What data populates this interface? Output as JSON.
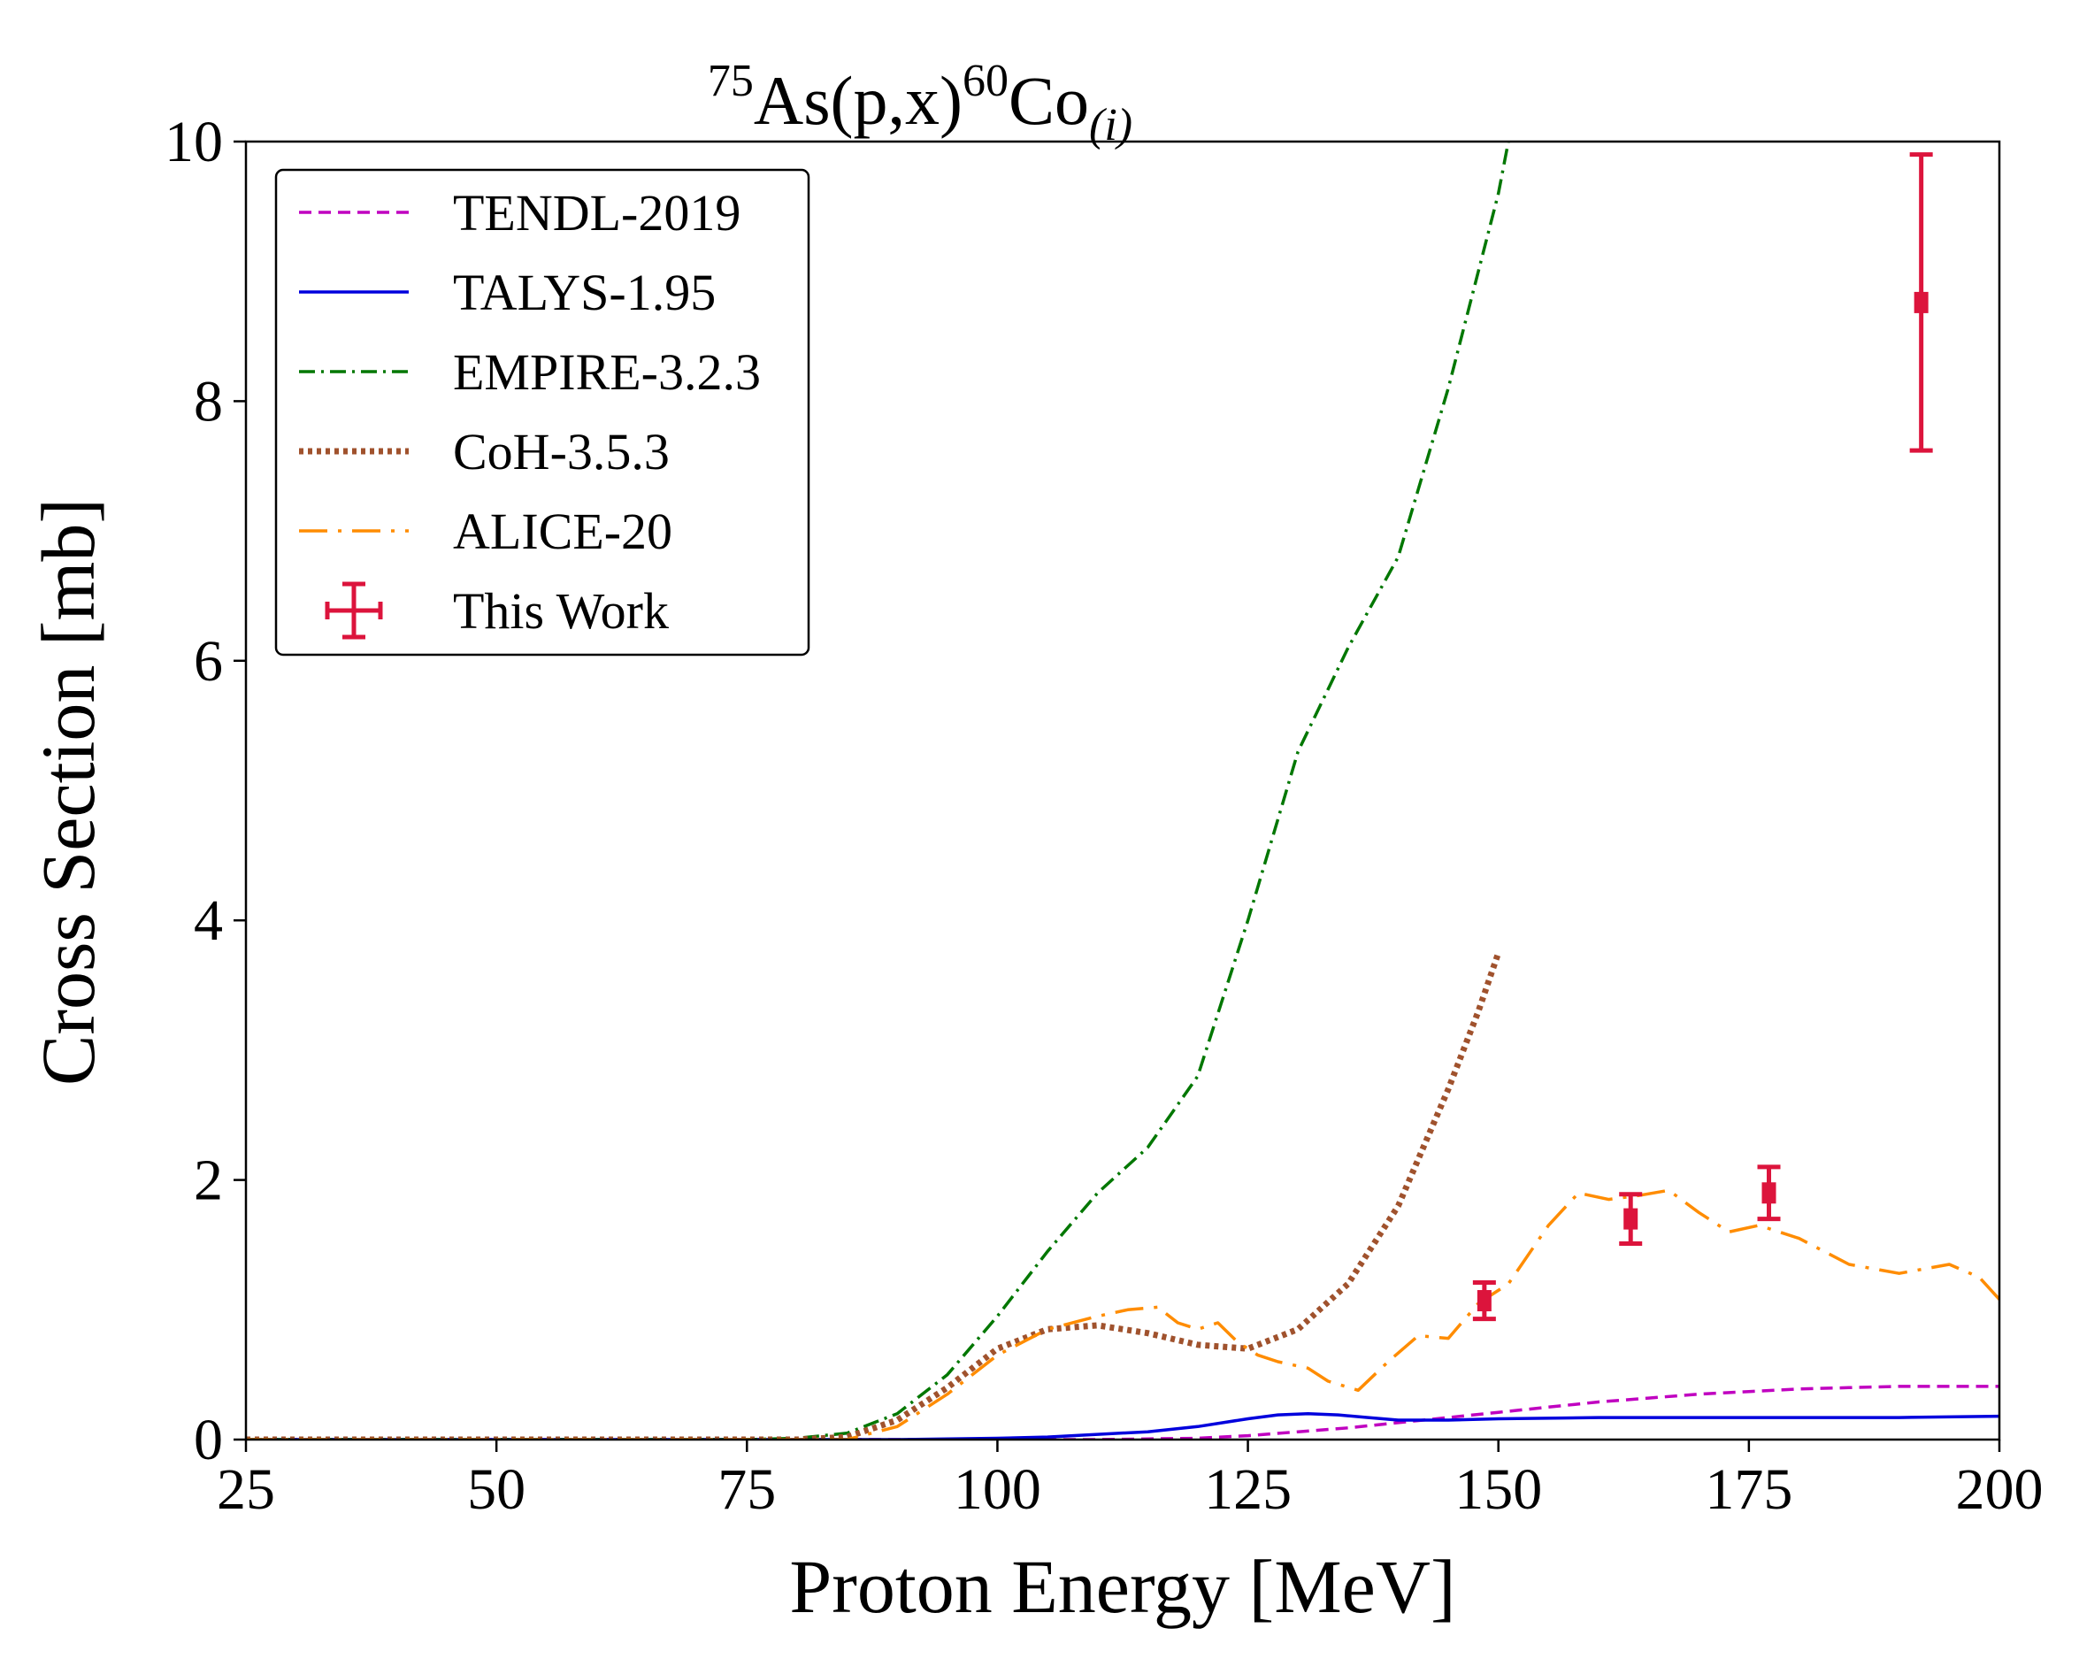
{
  "chart_data": {
    "type": "line",
    "title": {
      "pre_sup": "75",
      "main": "As(p,x)",
      "mid_sup": "60",
      "tail": "Co",
      "sub": "(i)"
    },
    "xlabel": "Proton Energy [MeV]",
    "ylabel": "Cross Section [mb]",
    "xlim": [
      25,
      200
    ],
    "ylim": [
      0,
      10
    ],
    "xticks": [
      25,
      50,
      75,
      100,
      125,
      150,
      175,
      200
    ],
    "yticks": [
      0,
      2,
      4,
      6,
      8,
      10
    ],
    "grid": false,
    "legend_position": "top-left",
    "series": [
      {
        "name": "TENDL-2019",
        "color": "#c000c0",
        "style": "dashed",
        "x": [
          25,
          110,
          120,
          125,
          130,
          135,
          140,
          145,
          150,
          155,
          160,
          165,
          170,
          175,
          180,
          185,
          190,
          195,
          200
        ],
        "y": [
          0,
          0,
          0.01,
          0.03,
          0.06,
          0.09,
          0.13,
          0.17,
          0.21,
          0.25,
          0.29,
          0.32,
          0.35,
          0.37,
          0.39,
          0.4,
          0.41,
          0.41,
          0.41
        ]
      },
      {
        "name": "TALYS-1.95",
        "color": "#0000dd",
        "style": "solid",
        "x": [
          25,
          90,
          100,
          105,
          110,
          115,
          120,
          125,
          128,
          131,
          134,
          137,
          140,
          145,
          150,
          160,
          170,
          180,
          190,
          200
        ],
        "y": [
          0,
          0,
          0.01,
          0.02,
          0.04,
          0.06,
          0.1,
          0.16,
          0.19,
          0.2,
          0.19,
          0.17,
          0.15,
          0.15,
          0.16,
          0.17,
          0.17,
          0.17,
          0.17,
          0.18
        ]
      },
      {
        "name": "EMPIRE-3.2.3",
        "color": "#007700",
        "style": "dashdot",
        "x": [
          25,
          75,
          80,
          85,
          90,
          95,
          100,
          105,
          110,
          115,
          120,
          125,
          130,
          135,
          140,
          145,
          150,
          151
        ],
        "y": [
          0,
          0,
          0.01,
          0.05,
          0.2,
          0.5,
          0.95,
          1.45,
          1.9,
          2.25,
          2.8,
          4.0,
          5.3,
          6.1,
          6.8,
          8.1,
          9.6,
          10.0
        ]
      },
      {
        "name": "CoH-3.5.3",
        "color": "#a0522d",
        "style": "dotted",
        "x": [
          25,
          80,
          85,
          90,
          95,
          100,
          105,
          110,
          115,
          120,
          125,
          130,
          135,
          140,
          145,
          148,
          150
        ],
        "y": [
          0,
          0,
          0.02,
          0.15,
          0.4,
          0.7,
          0.85,
          0.88,
          0.82,
          0.73,
          0.7,
          0.85,
          1.2,
          1.8,
          2.7,
          3.3,
          3.75
        ]
      },
      {
        "name": "ALICE-20",
        "color": "#ff8c00",
        "style": "longdashdot",
        "x": [
          25,
          85,
          90,
          95,
          100,
          105,
          110,
          113,
          116,
          118,
          120,
          122,
          124,
          126,
          128,
          131,
          133,
          136,
          139,
          142,
          145,
          148,
          151,
          155,
          158,
          161,
          164,
          167,
          170,
          173,
          176,
          180,
          185,
          190,
          195,
          198,
          200
        ],
        "y": [
          0,
          0,
          0.1,
          0.35,
          0.65,
          0.85,
          0.95,
          1.0,
          1.02,
          0.9,
          0.85,
          0.9,
          0.75,
          0.65,
          0.6,
          0.55,
          0.45,
          0.38,
          0.6,
          0.8,
          0.78,
          1.05,
          1.2,
          1.65,
          1.9,
          1.85,
          1.88,
          1.92,
          1.75,
          1.6,
          1.65,
          1.55,
          1.35,
          1.28,
          1.35,
          1.25,
          1.08
        ]
      }
    ],
    "errorbar_series": {
      "name": "This Work",
      "color": "#dc143c",
      "points": [
        {
          "x": 148.6,
          "y": 1.07,
          "yerr": 0.14,
          "xerr": 0.5
        },
        {
          "x": 163.2,
          "y": 1.7,
          "yerr": 0.19,
          "xerr": 0.5
        },
        {
          "x": 177.0,
          "y": 1.9,
          "yerr": 0.2,
          "xerr": 0.5
        },
        {
          "x": 192.2,
          "y": 8.76,
          "yerr": 1.14,
          "xerr": 0.5
        }
      ]
    }
  }
}
